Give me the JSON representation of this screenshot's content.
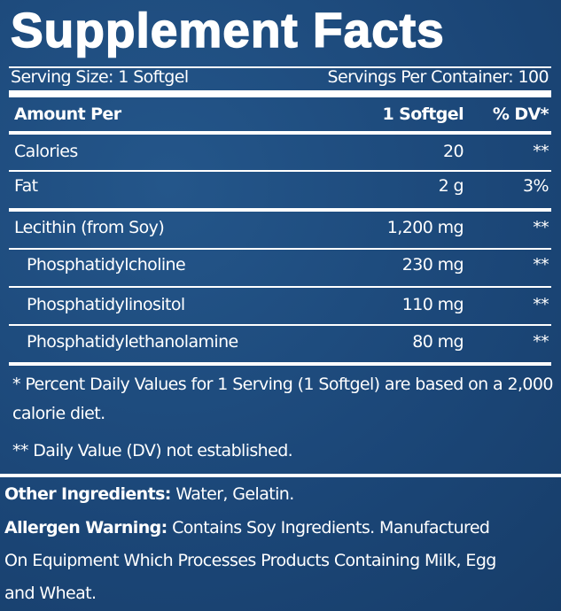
{
  "header": {
    "title": "Supplement Facts",
    "serving_size": "Serving Size: 1 Softgel",
    "servings_per_container": "Servings Per Container: 100"
  },
  "table": {
    "columns": [
      "Amount Per",
      "1 Softgel",
      "% DV*"
    ],
    "rows": [
      [
        "Calories",
        "20",
        "**"
      ],
      [
        "Fat",
        "2 g",
        "3%"
      ],
      [
        "Lecithin (from Soy)",
        "1,200 mg",
        "**"
      ],
      [
        "Phosphatidylcholine",
        "230 mg",
        "**"
      ],
      [
        "Phosphatidylinositol",
        "110 mg",
        "**"
      ],
      [
        "Phosphatidylethanolamine",
        "80 mg",
        "**"
      ]
    ]
  },
  "footnotes": [
    "* Percent Daily Values for 1 Serving (1 Softgel) are based on a 2,000 calorie diet.",
    "** Daily Value (DV) not established."
  ],
  "other_ingredients": {
    "label": "Other Ingredients:",
    "text": "Water, Gelatin."
  },
  "allergen_warning": {
    "label": "Allergen Warning:",
    "text": "Contains Soy Ingredients. Manufactured On Equipment Which Processes Products Containing Milk, Egg and Wheat."
  }
}
